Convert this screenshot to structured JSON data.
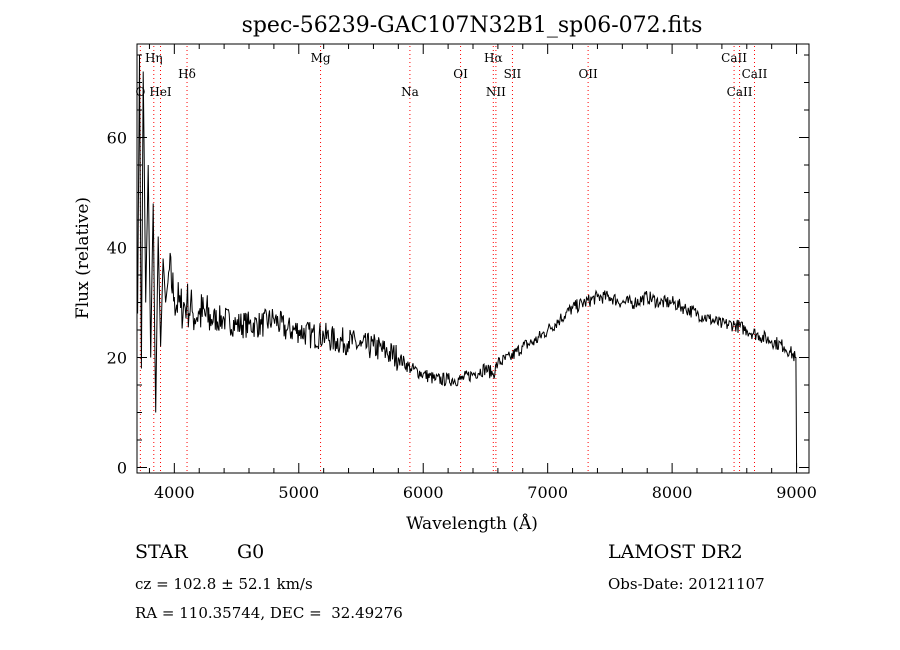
{
  "chart_data": {
    "type": "line",
    "title": "spec-56239-GAC107N32B1_sp06-072.fits",
    "xlabel": "Wavelength (Å)",
    "ylabel": "Flux (relative)",
    "xlim": [
      3700,
      9100
    ],
    "ylim": [
      -1,
      77
    ],
    "x_ticks": [
      4000,
      5000,
      6000,
      7000,
      8000,
      9000
    ],
    "y_ticks": [
      0,
      20,
      40,
      60
    ],
    "grid": false,
    "line_color": "#000000",
    "marker_color": "#ff0000",
    "series": [
      {
        "x": [
          3705,
          3720,
          3735,
          3750,
          3770,
          3790,
          3810,
          3830,
          3850,
          3870,
          3890,
          3910,
          3930,
          3960,
          4000,
          4050,
          4100,
          4150,
          4200,
          4300,
          4400,
          4500,
          4600,
          4700,
          4800,
          4900,
          5000,
          5100,
          5200,
          5300,
          5400,
          5500,
          5600,
          5700,
          5800,
          5900,
          6000,
          6100,
          6200,
          6300,
          6400,
          6500,
          6563,
          6600,
          6700,
          6800,
          6900,
          7000,
          7100,
          7200,
          7300,
          7400,
          7500,
          7600,
          7700,
          7800,
          7900,
          8000,
          8100,
          8200,
          8300,
          8400,
          8500,
          8600,
          8700,
          8800,
          8900,
          8950,
          8990,
          9000
        ],
        "y": [
          28,
          75,
          18,
          72,
          30,
          55,
          20,
          48,
          10,
          42,
          22,
          38,
          30,
          36,
          31,
          29,
          30,
          28,
          28,
          27,
          27,
          26,
          26,
          26,
          27,
          25,
          25,
          24,
          24,
          23,
          23,
          22,
          22,
          21,
          20,
          18,
          17,
          16,
          16,
          16,
          17,
          18,
          17,
          19,
          20,
          22,
          23,
          25,
          27,
          29,
          30,
          31,
          31,
          30,
          30,
          31,
          30,
          30,
          29,
          28,
          27,
          26,
          26,
          25,
          24,
          23,
          22,
          21,
          20,
          0
        ]
      }
    ],
    "lines": [
      {
        "label": "O",
        "x": 3727,
        "row": 3
      },
      {
        "label": "Hη",
        "x": 3835,
        "row": 1
      },
      {
        "label": "HeI",
        "x": 3889,
        "row": 3
      },
      {
        "label": "Hδ",
        "x": 4102,
        "row": 2
      },
      {
        "label": "Mg",
        "x": 5175,
        "row": 1
      },
      {
        "label": "Na",
        "x": 5893,
        "row": 3
      },
      {
        "label": "OI",
        "x": 6300,
        "row": 2
      },
      {
        "label": "Hα",
        "x": 6563,
        "row": 1
      },
      {
        "label": "NII",
        "x": 6584,
        "row": 3
      },
      {
        "label": "SII",
        "x": 6717,
        "row": 2
      },
      {
        "label": "OII",
        "x": 7325,
        "row": 2
      },
      {
        "label": "CaII",
        "x": 8498,
        "row": 1
      },
      {
        "label": "CaII",
        "x": 8542,
        "row": 3
      },
      {
        "label": "CaII",
        "x": 8662,
        "row": 2
      }
    ]
  },
  "info": {
    "object_type": "STAR",
    "subclass": "G0",
    "survey": "LAMOST DR2",
    "redshift": "cz = 102.8 ± 52.1 km/s",
    "obs_date": "Obs-Date: 20121107",
    "coords": "RA = 110.35744, DEC =  32.49276"
  }
}
